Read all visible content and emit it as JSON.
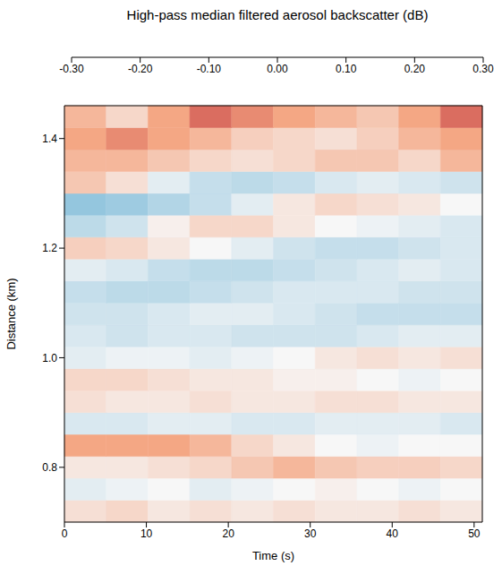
{
  "chart_data": {
    "type": "heatmap",
    "colorbar_label": "High-pass median filtered aerosol backscatter (dB)",
    "x_label": "Time (s)",
    "y_label": "Distance (km)",
    "xlim": [
      0,
      51
    ],
    "xticks": [
      0,
      10,
      20,
      30,
      40,
      50
    ],
    "ylim": [
      0.7,
      1.46
    ],
    "yticks": [
      0.8,
      {
        "value": 1,
        "label": "1.0"
      },
      1.2,
      1.4
    ],
    "zlim": [
      -0.3,
      0.3
    ],
    "zticks": [
      {
        "value": -0.3,
        "label": "-0.30"
      },
      {
        "value": -0.2,
        "label": "-0.20"
      },
      {
        "value": -0.1,
        "label": "-0.10"
      },
      {
        "value": 0,
        "label": "0.00"
      },
      {
        "value": 0.1,
        "label": "0.10"
      },
      {
        "value": 0.2,
        "label": "0.20"
      },
      {
        "value": 0.3,
        "label": "0.30"
      }
    ],
    "x_edges": [
      0,
      5.1,
      10.2,
      15.3,
      20.4,
      25.5,
      30.6,
      35.7,
      40.8,
      45.9,
      51
    ],
    "y_edges": [
      0.7,
      0.74,
      0.78,
      0.82,
      0.86,
      0.9,
      0.94,
      0.98,
      1.02,
      1.06,
      1.1,
      1.14,
      1.18,
      1.22,
      1.26,
      1.3,
      1.34,
      1.38,
      1.42,
      1.46
    ],
    "z": [
      [
        -0.03,
        -0.04,
        -0.02,
        -0.03,
        -0.02,
        -0.03,
        -0.02,
        -0.02,
        -0.03,
        -0.02
      ],
      [
        0.02,
        0.01,
        0.0,
        0.02,
        0.01,
        0.0,
        -0.01,
        0.0,
        0.01,
        0.0
      ],
      [
        -0.02,
        -0.02,
        -0.03,
        -0.04,
        -0.06,
        -0.08,
        -0.06,
        -0.05,
        -0.05,
        -0.04
      ],
      [
        -0.1,
        -0.1,
        -0.1,
        -0.08,
        -0.04,
        -0.02,
        0.0,
        0.01,
        0.0,
        0.0
      ],
      [
        0.03,
        0.03,
        0.02,
        0.02,
        0.03,
        0.03,
        0.02,
        0.02,
        0.02,
        0.03
      ],
      [
        -0.03,
        -0.02,
        -0.02,
        -0.03,
        -0.02,
        -0.02,
        -0.03,
        -0.03,
        -0.02,
        -0.02
      ],
      [
        -0.04,
        -0.04,
        -0.03,
        -0.02,
        -0.02,
        -0.01,
        -0.01,
        0.0,
        0.01,
        0.0
      ],
      [
        0.02,
        0.01,
        0.01,
        0.02,
        0.01,
        0.0,
        -0.02,
        -0.03,
        -0.02,
        -0.03
      ],
      [
        0.03,
        0.04,
        0.03,
        0.03,
        0.04,
        0.04,
        0.04,
        0.03,
        0.02,
        0.02
      ],
      [
        0.04,
        0.04,
        0.03,
        0.02,
        0.02,
        0.03,
        0.04,
        0.05,
        0.05,
        0.05
      ],
      [
        0.05,
        0.06,
        0.06,
        0.05,
        0.04,
        0.03,
        0.03,
        0.03,
        0.04,
        0.04
      ],
      [
        0.02,
        0.03,
        0.05,
        0.06,
        0.06,
        0.05,
        0.04,
        0.03,
        0.02,
        0.03
      ],
      [
        -0.05,
        -0.04,
        -0.02,
        0.0,
        0.02,
        0.04,
        0.05,
        0.05,
        0.04,
        0.03
      ],
      [
        0.06,
        0.04,
        -0.01,
        -0.04,
        -0.04,
        -0.02,
        0.0,
        0.01,
        0.02,
        0.03
      ],
      [
        0.1,
        0.09,
        0.07,
        0.05,
        0.02,
        -0.02,
        -0.04,
        -0.03,
        -0.02,
        0.0
      ],
      [
        -0.06,
        -0.03,
        0.02,
        0.05,
        0.06,
        0.05,
        0.03,
        0.02,
        0.03,
        0.04
      ],
      [
        -0.08,
        -0.08,
        -0.06,
        -0.04,
        -0.03,
        -0.04,
        -0.06,
        -0.06,
        -0.04,
        -0.08
      ],
      [
        -0.1,
        -0.12,
        -0.1,
        -0.08,
        -0.05,
        -0.04,
        -0.03,
        -0.05,
        -0.08,
        -0.1
      ],
      [
        -0.08,
        -0.04,
        -0.1,
        -0.14,
        -0.12,
        -0.1,
        -0.08,
        -0.06,
        -0.1,
        -0.14
      ]
    ]
  }
}
